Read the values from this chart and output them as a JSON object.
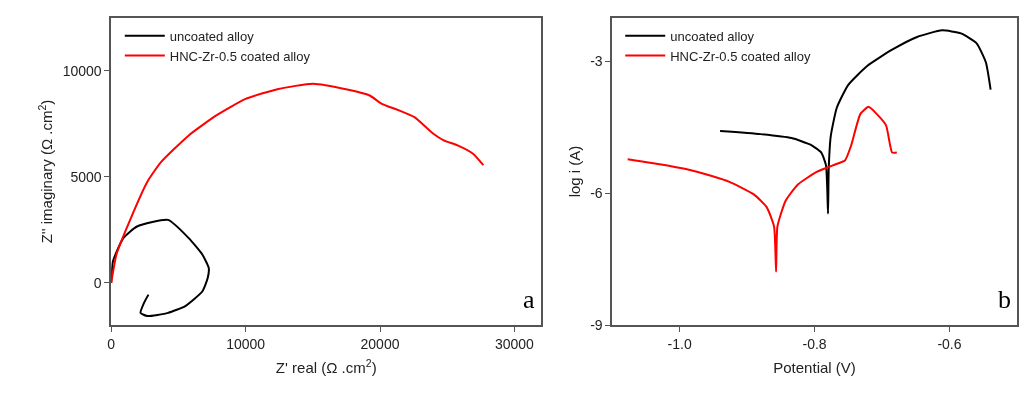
{
  "chart_data": [
    {
      "type": "line",
      "xlabel": "Z' real (Ω .cm$^{2}$)",
      "ylabel": "Z'' imaginary (Ω .cm$^{2}$)",
      "xlim": [
        0,
        32000
      ],
      "ylim": [
        -2000,
        12500
      ],
      "xticks": [
        0,
        10000,
        20000,
        30000
      ],
      "yticks": [
        0,
        5000,
        10000
      ],
      "legend": "top left",
      "annotations": [
        "a"
      ],
      "series": [
        {
          "name": "uncoated alloy",
          "color": "#000000",
          "x": [
            0,
            130,
            900,
            1920,
            4230,
            5770,
            6790,
            7260,
            7180,
            6790,
            5510,
            4230,
            2690,
            2180,
            2440,
            2770
          ],
          "values": [
            0,
            1020,
            2110,
            2660,
            2970,
            2110,
            1330,
            700,
            230,
            -390,
            -1090,
            -1410,
            -1560,
            -1410,
            -940,
            -550
          ]
        },
        {
          "name": "HNC-Zr-0.5 coated alloy",
          "color": "#ff0000",
          "x": [
            0,
            385,
            1150,
            2690,
            3720,
            5770,
            7820,
            10000,
            12440,
            15000,
            17560,
            19230,
            20130,
            21410,
            22560,
            23970,
            24740,
            25770,
            26920,
            27690
          ],
          "values": [
            0,
            1330,
            2580,
            4770,
            5700,
            6950,
            7890,
            8670,
            9140,
            9380,
            9110,
            8830,
            8440,
            8130,
            7810,
            7030,
            6720,
            6480,
            6090,
            5550
          ]
        }
      ]
    },
    {
      "type": "line",
      "xlabel": "Potential (V)",
      "ylabel": "log i (A)",
      "xlim": [
        -1.1,
        -0.5
      ],
      "ylim": [
        -9,
        -2
      ],
      "xticks": [
        {
          "value": -1.0,
          "label": "-1.0"
        },
        {
          "value": -0.8,
          "label": "-0.8"
        },
        {
          "value": -0.6,
          "label": "-0.6"
        }
      ],
      "yticks": [
        -3,
        -6,
        -9
      ],
      "legend": "top left",
      "annotations": [
        "b"
      ],
      "series": [
        {
          "name": "uncoated alloy",
          "color": "#000000",
          "x": [
            -0.94,
            -0.88,
            -0.834,
            -0.806,
            -0.79,
            -0.783,
            -0.78,
            -0.779,
            -0.776,
            -0.767,
            -0.75,
            -0.722,
            -0.685,
            -0.648,
            -0.611,
            -0.583,
            -0.56,
            -0.546,
            -0.539
          ],
          "values": [
            -4.58,
            -4.65,
            -4.74,
            -4.89,
            -5.07,
            -5.36,
            -6.46,
            -5.44,
            -4.7,
            -4.05,
            -3.53,
            -3.1,
            -2.73,
            -2.44,
            -2.29,
            -2.36,
            -2.58,
            -3.02,
            -3.64
          ]
        },
        {
          "name": "HNC-Zr-0.5 coated alloy",
          "color": "#ff0000",
          "x": [
            -1.077,
            -1.02,
            -0.973,
            -0.927,
            -0.89,
            -0.871,
            -0.86,
            -0.857,
            -0.855,
            -0.843,
            -0.825,
            -0.797,
            -0.773,
            -0.755,
            -0.746,
            -0.732,
            -0.72,
            -0.708,
            -0.694,
            -0.685,
            -0.678
          ],
          "values": [
            -5.22,
            -5.36,
            -5.51,
            -5.73,
            -6.02,
            -6.31,
            -6.75,
            -7.78,
            -6.75,
            -6.17,
            -5.8,
            -5.51,
            -5.36,
            -5.25,
            -4.92,
            -4.19,
            -4.03,
            -4.19,
            -4.45,
            -5.07,
            -5.07
          ]
        }
      ]
    }
  ]
}
